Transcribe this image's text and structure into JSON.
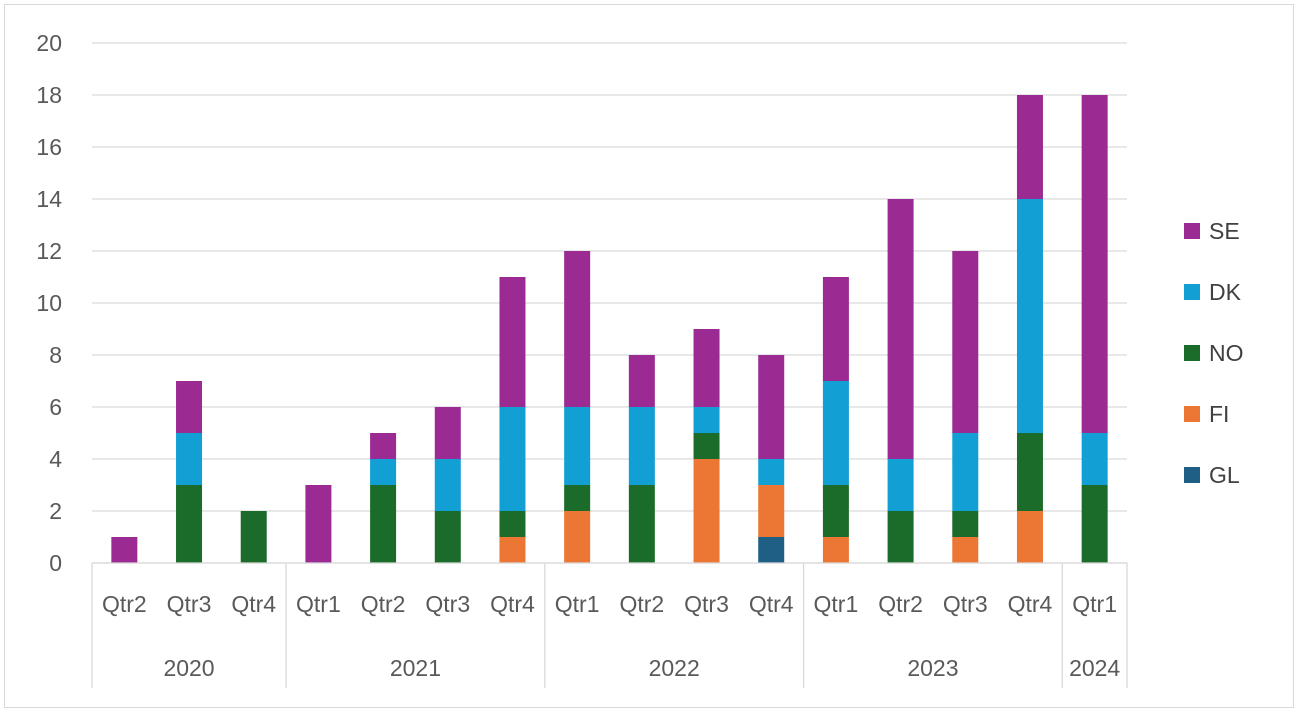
{
  "chart_data": {
    "type": "bar",
    "stacked": true,
    "title": "",
    "xlabel": "",
    "ylabel": "",
    "ylim": [
      0,
      20
    ],
    "yticks": [
      0,
      2,
      4,
      6,
      8,
      10,
      12,
      14,
      16,
      18,
      20
    ],
    "grid": true,
    "legend_position": "right",
    "groups": [
      {
        "year": "2020",
        "quarters": [
          "Qtr2",
          "Qtr3",
          "Qtr4"
        ]
      },
      {
        "year": "2021",
        "quarters": [
          "Qtr1",
          "Qtr2",
          "Qtr3",
          "Qtr4"
        ]
      },
      {
        "year": "2022",
        "quarters": [
          "Qtr1",
          "Qtr2",
          "Qtr3",
          "Qtr4"
        ]
      },
      {
        "year": "2023",
        "quarters": [
          "Qtr1",
          "Qtr2",
          "Qtr3",
          "Qtr4"
        ]
      },
      {
        "year": "2024",
        "quarters": [
          "Qtr1"
        ]
      }
    ],
    "categories": [
      "Qtr2",
      "Qtr3",
      "Qtr4",
      "Qtr1",
      "Qtr2",
      "Qtr3",
      "Qtr4",
      "Qtr1",
      "Qtr2",
      "Qtr3",
      "Qtr4",
      "Qtr1",
      "Qtr2",
      "Qtr3",
      "Qtr4",
      "Qtr1"
    ],
    "series": [
      {
        "name": "GL",
        "color": "#1f5f86",
        "values": [
          0,
          0,
          0,
          0,
          0,
          0,
          0,
          0,
          0,
          0,
          1,
          0,
          0,
          0,
          0,
          0
        ]
      },
      {
        "name": "FI",
        "color": "#ec7634",
        "values": [
          0,
          0,
          0,
          0,
          0,
          0,
          1,
          2,
          0,
          4,
          2,
          1,
          0,
          1,
          2,
          0
        ]
      },
      {
        "name": "NO",
        "color": "#1b6b2a",
        "values": [
          0,
          3,
          2,
          0,
          3,
          2,
          1,
          1,
          3,
          1,
          0,
          2,
          2,
          1,
          3,
          3
        ]
      },
      {
        "name": "DK",
        "color": "#12a0d4",
        "values": [
          0,
          2,
          0,
          0,
          1,
          2,
          4,
          3,
          3,
          1,
          1,
          4,
          2,
          3,
          9,
          2
        ]
      },
      {
        "name": "SE",
        "color": "#9b2a92",
        "values": [
          1,
          2,
          0,
          3,
          1,
          2,
          5,
          6,
          2,
          3,
          4,
          4,
          10,
          7,
          4,
          13
        ]
      }
    ],
    "legend_order": [
      "SE",
      "DK",
      "NO",
      "FI",
      "GL"
    ]
  }
}
